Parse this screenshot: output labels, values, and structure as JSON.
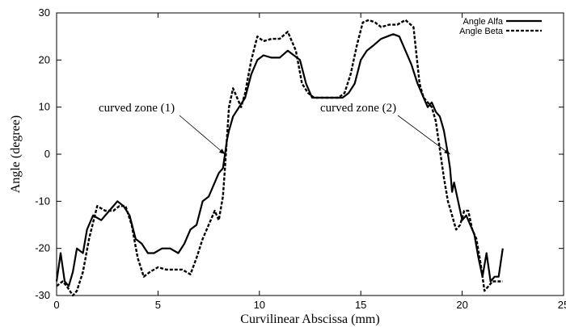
{
  "chart_data": {
    "type": "line",
    "title": "",
    "xlabel": "Curvilinear Abscissa (mm)",
    "ylabel": "Angle (degree)",
    "xlim": [
      0,
      25
    ],
    "ylim": [
      -30,
      30
    ],
    "x_ticks": [
      "0",
      "5",
      "10",
      "15",
      "20",
      "25"
    ],
    "y_ticks": [
      "-30",
      "-20",
      "-10",
      "0",
      "10",
      "20",
      "30"
    ],
    "grid": false,
    "legend_position": "top-right",
    "series": [
      {
        "name": "Angle Alfa",
        "style": "solid",
        "color": "#000000",
        "x": [
          0,
          0.2,
          0.4,
          0.6,
          0.8,
          1.0,
          1.3,
          1.5,
          1.8,
          2.2,
          2.6,
          3.0,
          3.3,
          3.6,
          3.9,
          4.2,
          4.5,
          4.8,
          5.2,
          5.6,
          6.0,
          6.3,
          6.6,
          6.9,
          7.2,
          7.5,
          7.8,
          8.0,
          8.2,
          8.3,
          8.4,
          8.5,
          8.7,
          9.0,
          9.3,
          9.6,
          9.9,
          10.2,
          10.6,
          11.0,
          11.4,
          11.7,
          12.0,
          12.3,
          12.6,
          12.9,
          13.2,
          13.5,
          13.8,
          14.1,
          14.4,
          14.7,
          15.0,
          15.3,
          15.6,
          16.0,
          16.3,
          16.6,
          16.9,
          17.2,
          17.5,
          17.8,
          18.1,
          18.3,
          18.5,
          18.7,
          18.9,
          19.1,
          19.3,
          19.4,
          19.5,
          19.6,
          19.7,
          19.8,
          19.9,
          20.0,
          20.2,
          20.4,
          20.6,
          20.8,
          21.0,
          21.2,
          21.4,
          21.6,
          21.8,
          22.0
        ],
        "y": [
          -27,
          -21,
          -27,
          -28,
          -25,
          -20,
          -21,
          -16,
          -13,
          -14,
          -12,
          -10,
          -11,
          -13,
          -18,
          -19,
          -21,
          -21,
          -20,
          -20,
          -21,
          -19,
          -16,
          -15,
          -10,
          -9,
          -6,
          -4,
          -3,
          0,
          3,
          5,
          8,
          10,
          12,
          17,
          20,
          21,
          20.5,
          20.5,
          22,
          21,
          20,
          15,
          12,
          12,
          12,
          12,
          12,
          12,
          13,
          15,
          20,
          22,
          23,
          24.5,
          25,
          25.5,
          25,
          22,
          19,
          15,
          12,
          10,
          11,
          9,
          8,
          5,
          0,
          -3,
          -8,
          -6,
          -8,
          -10,
          -12,
          -14,
          -13,
          -15,
          -17,
          -22,
          -26,
          -21,
          -27,
          -26,
          -26,
          -20
        ]
      },
      {
        "name": "Angle Beta",
        "style": "dashed",
        "color": "#000000",
        "x": [
          0,
          0.3,
          0.5,
          0.8,
          1.0,
          1.3,
          1.6,
          2.0,
          2.4,
          2.8,
          3.1,
          3.4,
          3.7,
          4.0,
          4.3,
          4.6,
          5.0,
          5.4,
          5.8,
          6.2,
          6.6,
          6.9,
          7.2,
          7.5,
          7.8,
          8.0,
          8.2,
          8.3,
          8.5,
          8.7,
          8.9,
          9.1,
          9.3,
          9.6,
          9.9,
          10.2,
          10.6,
          11.0,
          11.4,
          11.8,
          12.1,
          12.4,
          12.7,
          13.0,
          13.3,
          13.6,
          13.9,
          14.2,
          14.5,
          14.8,
          15.1,
          15.4,
          15.7,
          16.0,
          16.4,
          16.8,
          17.2,
          17.6,
          17.9,
          18.1,
          18.3,
          18.5,
          18.7,
          18.9,
          19.1,
          19.3,
          19.5,
          19.7,
          19.9,
          20.1,
          20.3,
          20.5,
          20.7,
          20.9,
          21.1,
          21.3,
          21.5,
          21.7,
          21.9,
          22.0
        ],
        "y": [
          -28,
          -27,
          -28,
          -30,
          -29,
          -25,
          -18,
          -11,
          -12,
          -12,
          -11,
          -11,
          -15,
          -22,
          -26,
          -25,
          -24,
          -24.5,
          -24.5,
          -24.5,
          -25.5,
          -22,
          -18,
          -15,
          -12,
          -14,
          -9,
          -3,
          10,
          14,
          12,
          10,
          13,
          20,
          25,
          24,
          24.5,
          24.5,
          26,
          22,
          15,
          13,
          12,
          12,
          12,
          12,
          12,
          13,
          17,
          23,
          28,
          28.5,
          28,
          27,
          27.5,
          27.5,
          28.5,
          27,
          15,
          12,
          11,
          10,
          7,
          1,
          -5,
          -10,
          -13,
          -16,
          -15,
          -12,
          -12,
          -16,
          -18,
          -23,
          -29,
          -28,
          -27,
          -27,
          -27,
          -27
        ]
      }
    ],
    "annotations": [
      {
        "text": "curved zone (1)",
        "target_x": 8.3,
        "target_y": 0
      },
      {
        "text": "curved zone (2)",
        "target_x": 19.4,
        "target_y": 0
      }
    ]
  }
}
